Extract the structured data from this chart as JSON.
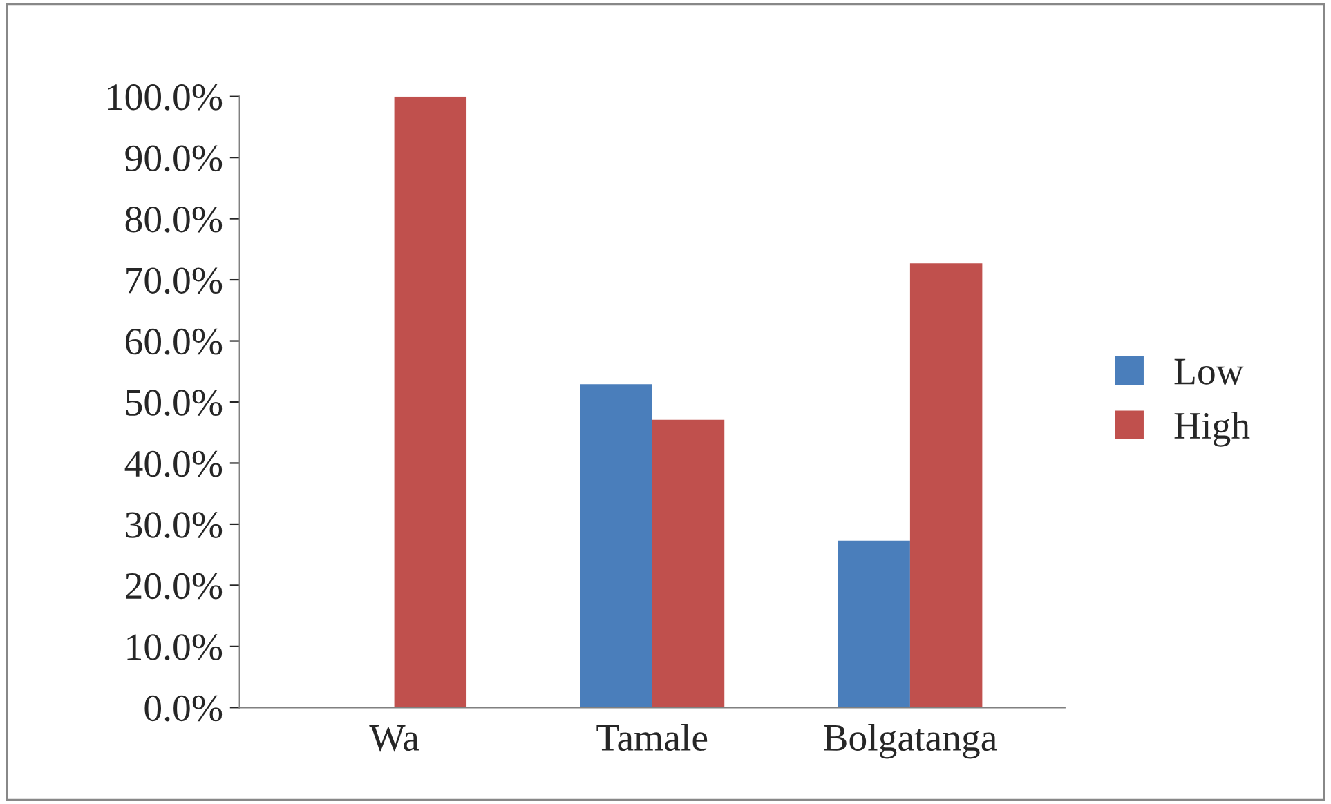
{
  "chart_data": {
    "type": "bar",
    "categories": [
      "Wa",
      "Tamale",
      "Bolgatanga"
    ],
    "series": [
      {
        "name": "Low",
        "color": "#4a7ebb",
        "values": [
          0,
          52.9,
          27.3
        ]
      },
      {
        "name": "High",
        "color": "#c0504d",
        "values": [
          100,
          47.1,
          72.7
        ]
      }
    ],
    "ylim": [
      0,
      100
    ],
    "yticks": [
      {
        "value": 0,
        "label": "0.0%"
      },
      {
        "value": 10,
        "label": "10.0%"
      },
      {
        "value": 20,
        "label": "20.0%"
      },
      {
        "value": 30,
        "label": "30.0%"
      },
      {
        "value": 40,
        "label": "40.0%"
      },
      {
        "value": 50,
        "label": "50.0%"
      },
      {
        "value": 60,
        "label": "60.0%"
      },
      {
        "value": 70,
        "label": "70.0%"
      },
      {
        "value": 80,
        "label": "80.0%"
      },
      {
        "value": 90,
        "label": "90.0%"
      },
      {
        "value": 100,
        "label": "100.0%"
      }
    ],
    "grid": false,
    "legend": "right"
  }
}
